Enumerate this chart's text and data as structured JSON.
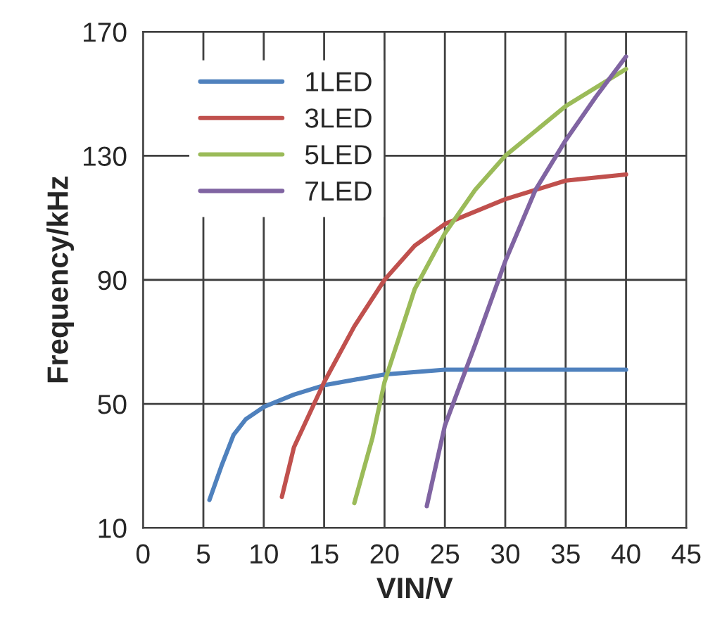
{
  "chart_data": {
    "type": "line",
    "xlabel": "VIN/V",
    "ylabel": "Frequency/kHz",
    "xlim": [
      0,
      45
    ],
    "xticks": [
      0,
      5,
      10,
      15,
      20,
      25,
      30,
      35,
      40,
      45
    ],
    "ylim": [
      10,
      170
    ],
    "yticks": [
      10,
      50,
      90,
      130,
      170
    ],
    "grid": true,
    "legend": "top left",
    "marker": "none",
    "line_style": "solid",
    "series": [
      {
        "name": "1LED",
        "color": "#4f81bd",
        "x": [
          5.5,
          6.5,
          7.5,
          8.5,
          10,
          12.5,
          15,
          20,
          25,
          30,
          40
        ],
        "values": [
          19,
          30,
          40,
          45,
          49,
          53,
          56,
          59.5,
          61,
          61,
          61
        ]
      },
      {
        "name": "3LED",
        "color": "#c0504d",
        "x": [
          11.5,
          12.5,
          15,
          17.5,
          20,
          22.5,
          25,
          30,
          35,
          40
        ],
        "values": [
          20,
          36,
          57,
          75,
          90,
          101,
          108,
          116,
          122,
          124
        ]
      },
      {
        "name": "5LED",
        "color": "#9bbb59",
        "x": [
          17.5,
          19,
          20,
          22.5,
          25,
          27.5,
          30,
          35,
          40
        ],
        "values": [
          18,
          39,
          57,
          87,
          105,
          119,
          130,
          146,
          158
        ]
      },
      {
        "name": "7LED",
        "color": "#8064a2",
        "x": [
          23.5,
          25,
          27.5,
          30,
          32.5,
          35,
          37.5,
          40
        ],
        "values": [
          17,
          43,
          69,
          96,
          119,
          135,
          149,
          162
        ]
      }
    ]
  }
}
